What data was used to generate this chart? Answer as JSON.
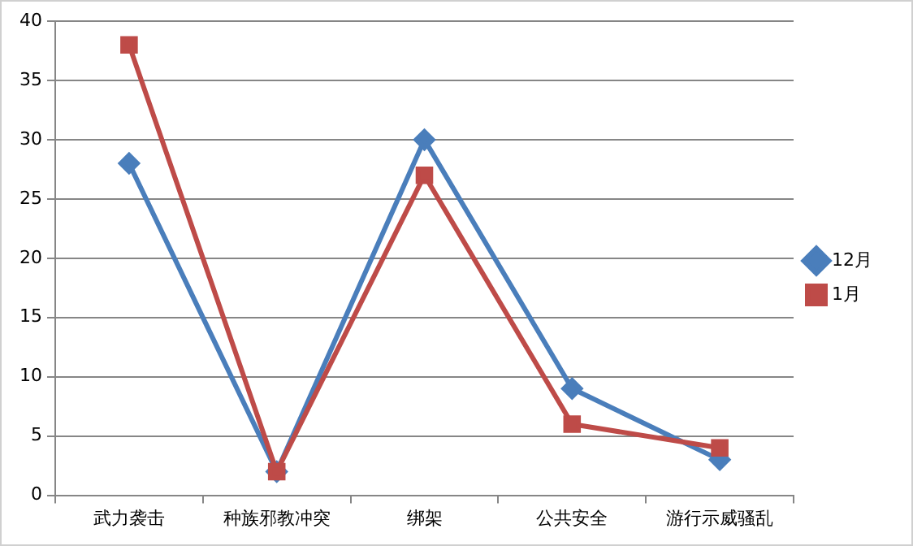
{
  "chart_data": {
    "type": "line",
    "categories": [
      "武力袭击",
      "种族邪教冲突",
      "绑架",
      "公共安全",
      "游行示威骚乱"
    ],
    "series": [
      {
        "name": "12月",
        "color": "#4a7ebb",
        "marker": "diamond",
        "values": [
          28,
          2,
          30,
          9,
          3
        ]
      },
      {
        "name": "1月",
        "color": "#be4b48",
        "marker": "square",
        "values": [
          38,
          2,
          27,
          6,
          4
        ]
      }
    ],
    "ylim": [
      0,
      40
    ],
    "yticks": [
      0,
      5,
      10,
      15,
      20,
      25,
      30,
      35,
      40
    ],
    "grid": "y",
    "legend": "right",
    "line_style": "solid"
  }
}
